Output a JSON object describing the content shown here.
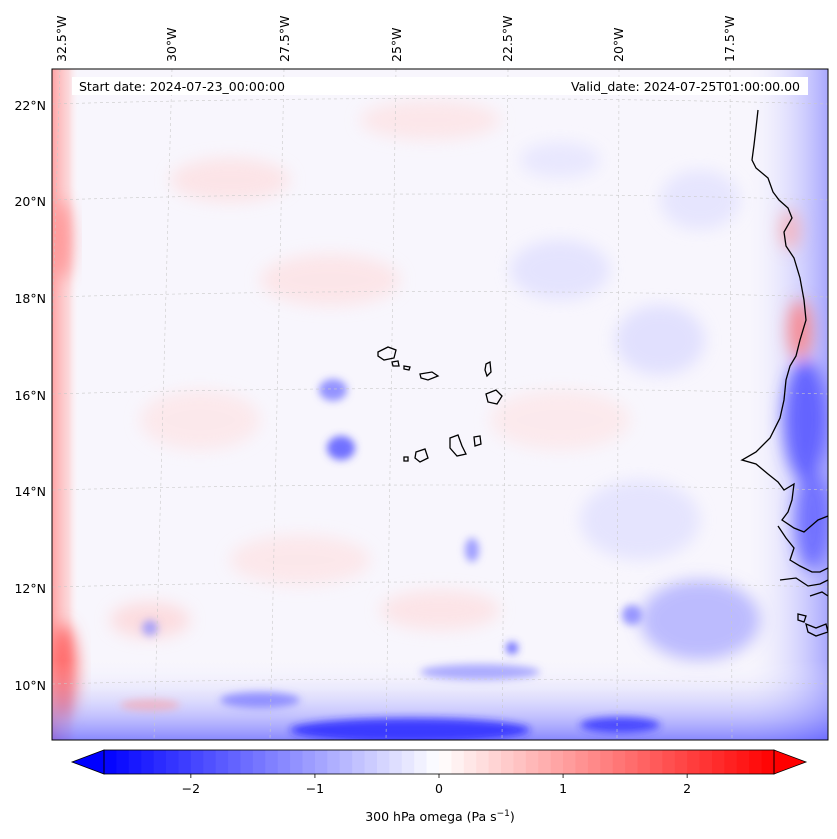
{
  "header": {
    "start_date": "Start date: 2024-07-23_00:00:00",
    "valid_date": "Valid_date: 2024-07-25T01:00:00.00"
  },
  "map": {
    "projection": "lambert-conformal",
    "field": "300 hPa omega",
    "lon_labels": [
      "32.5°W",
      "30°W",
      "27.5°W",
      "25°W",
      "22.5°W",
      "20°W",
      "17.5°W"
    ],
    "lat_labels": [
      "22°N",
      "20°N",
      "18°N",
      "16°N",
      "14°N",
      "12°N",
      "10°N"
    ],
    "gridlines": true,
    "coastline_color": "#000000"
  },
  "colorbar": {
    "label": "300 hPa omega (Pa s",
    "label_sup": "−1",
    "label_end": ")",
    "ticks": [
      "−2",
      "−1",
      "0",
      "1",
      "2"
    ],
    "range": [
      -2.7,
      2.7
    ],
    "cmap": "bwr",
    "extend": "both",
    "low_color": "#0000ff",
    "mid_color": "#ffffff",
    "high_color": "#ff0000"
  }
}
